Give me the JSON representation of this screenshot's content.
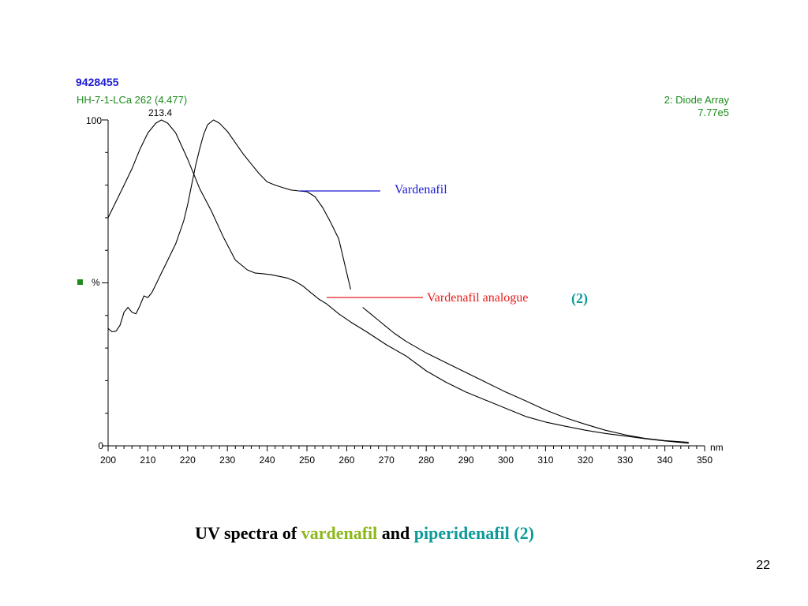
{
  "caption": {
    "prefix": "UV spectra of ",
    "compound1": "vardenafil",
    "middle": " and ",
    "compound2": "piperidenafil (2)"
  },
  "page_number": "22",
  "colors": {
    "header_id": "#1a1ad6",
    "header_green": "#1c8c1c",
    "vardenafil_pointer": "#1a1ad6",
    "analogue_pointer": "#e81c1c",
    "compound_label": "#0e9a9a",
    "caption_green": "#8cb81a",
    "caption_teal": "#0e9a9a",
    "legend_square": "#1c8c1c"
  },
  "chart_data": {
    "type": "line",
    "sample_id": "9428455",
    "trace_info": "HH-7-1-LCa 262 (4.477)",
    "detector": "2: Diode Array",
    "intensity": "7.77e5",
    "peak_label": {
      "text": "213.4",
      "x": 213.4
    },
    "y_axis_label": "%",
    "x_unit": "nm",
    "xlim": [
      200,
      350
    ],
    "ylim": [
      0,
      100
    ],
    "y_tick_labels": [
      {
        "value": 100,
        "text": "100"
      },
      {
        "value": 0,
        "text": "0"
      }
    ],
    "x_ticks": [
      200,
      210,
      220,
      230,
      240,
      250,
      260,
      270,
      280,
      290,
      300,
      310,
      320,
      330,
      340,
      350
    ],
    "grid": false,
    "series": [
      {
        "x": [
          200,
          202,
          204,
          206,
          208,
          210,
          212,
          213.4,
          215,
          217,
          220,
          223,
          226,
          229,
          232,
          235,
          237,
          239,
          241,
          243,
          245,
          247,
          249,
          251,
          253,
          255,
          258,
          261,
          265,
          270,
          275,
          280,
          285,
          290,
          295,
          300,
          305,
          310,
          315,
          320,
          325,
          330,
          335,
          340,
          346
        ],
        "values": [
          70,
          75,
          80,
          85,
          91,
          96,
          99,
          100,
          99,
          96,
          88,
          79,
          72,
          64,
          57,
          54,
          53,
          52.8,
          52.5,
          52,
          51.5,
          50.5,
          49,
          47,
          45,
          43.5,
          40.5,
          38,
          35,
          31,
          27.5,
          23,
          19.5,
          16.5,
          14,
          11.5,
          9,
          7.3,
          6,
          4.8,
          3.8,
          3,
          2.2,
          1.5,
          0.8
        ]
      },
      {
        "x": [
          200,
          201,
          202,
          203,
          204,
          205,
          206,
          207,
          208,
          209,
          210,
          211,
          212,
          213,
          215,
          217,
          219,
          220,
          221,
          222,
          223,
          224,
          225,
          226.5,
          228,
          230,
          232,
          234,
          236,
          238,
          240,
          242,
          244,
          246,
          248,
          250,
          252,
          254,
          256,
          258,
          261
        ],
        "values": [
          36,
          35,
          35.2,
          37,
          41,
          42.5,
          41,
          40.5,
          43,
          46,
          45.5,
          47,
          49.5,
          52,
          57,
          62,
          69,
          74,
          80,
          86,
          91,
          95.5,
          98.5,
          100,
          99,
          96.5,
          93,
          89.5,
          86.5,
          83.5,
          81,
          80,
          79.2,
          78.5,
          78.2,
          78,
          76.5,
          73,
          68.5,
          63.5,
          48
        ]
      },
      {
        "x": [
          264,
          266,
          268,
          270,
          272,
          275,
          280,
          285,
          290,
          295,
          300,
          305,
          310,
          315,
          320,
          325,
          330,
          335,
          340,
          346
        ],
        "values": [
          42.5,
          40.5,
          38.5,
          36.5,
          34.5,
          32,
          28.5,
          25.5,
          22.5,
          19.5,
          16.5,
          13.8,
          11,
          8.6,
          6.6,
          4.8,
          3.4,
          2.3,
          1.6,
          1.1
        ]
      }
    ],
    "annotations": [
      {
        "text": "Vardenafil",
        "points_to_x": 248,
        "points_to_y": 78.2
      },
      {
        "text": "Vardenafil analogue",
        "points_to_x": 255,
        "points_to_y": 45.5
      },
      {
        "text": "(2)"
      }
    ]
  }
}
